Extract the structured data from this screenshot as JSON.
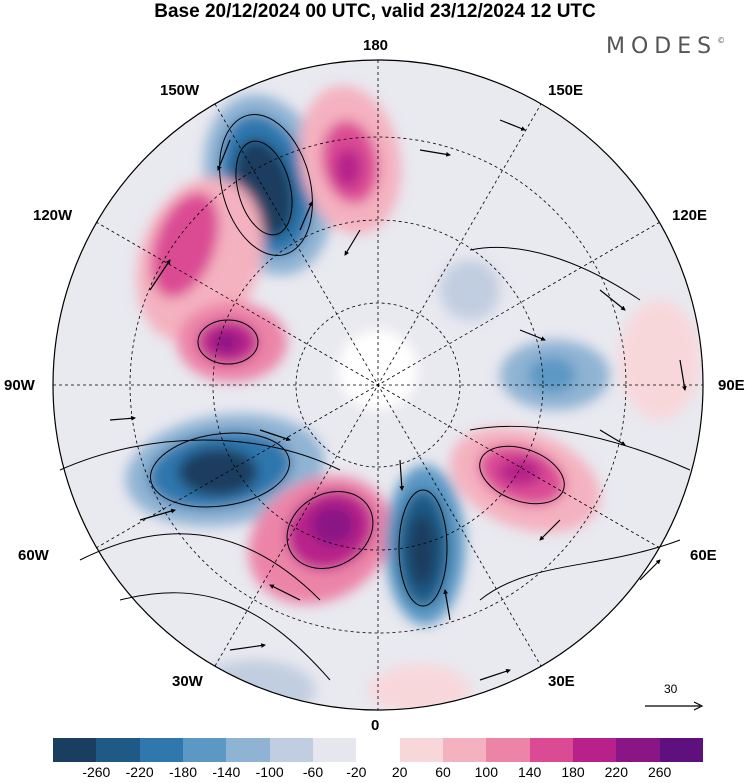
{
  "header": {
    "title": "Base 20/12/2024 00 UTC, valid 23/12/2024 12 UTC",
    "logo_text": "MODES",
    "logo_mark": "©"
  },
  "map": {
    "projection": "north polar stereographic",
    "longitude_labels": {
      "top": "180",
      "top_left": "150W",
      "top_right": "150E",
      "upper_left": "120W",
      "upper_right": "120E",
      "left": "90W",
      "right": "90E",
      "lower_left": "60W",
      "lower_right": "60E",
      "bottom_left": "30W",
      "bottom_right": "30E",
      "bottom": "0"
    },
    "reference_vector_label": "30"
  },
  "colorbar": {
    "colors": [
      "#1a3e5f",
      "#1f5a86",
      "#2f77ad",
      "#5b98c4",
      "#8fb3d3",
      "#c1cde0",
      "#e6e6ef",
      "#ffffff",
      "#f8d7da",
      "#f4b1bf",
      "#ec84a8",
      "#db4b94",
      "#b8218a",
      "#8a1585",
      "#5e107f"
    ],
    "labels": [
      "-260",
      "-220",
      "-180",
      "-140",
      "-100",
      "-60",
      "-20",
      "20",
      "60",
      "100",
      "140",
      "180",
      "220",
      "260"
    ]
  }
}
